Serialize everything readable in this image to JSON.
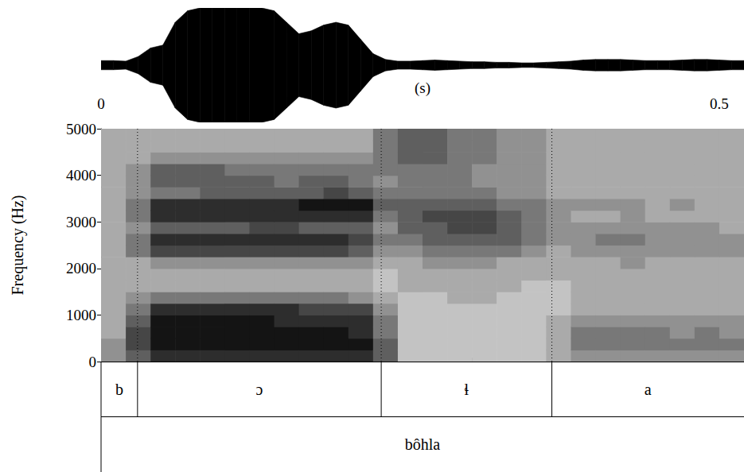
{
  "chart_data": [
    {
      "type": "waveform",
      "color": "#000000",
      "tick_labels": false,
      "xlim": [
        0,
        0.52
      ],
      "ylim": [
        -1,
        1
      ],
      "x": [
        0,
        0.01,
        0.02,
        0.03,
        0.04,
        0.05,
        0.06,
        0.07,
        0.08,
        0.09,
        0.1,
        0.11,
        0.12,
        0.13,
        0.14,
        0.15,
        0.16,
        0.17,
        0.18,
        0.19,
        0.2,
        0.21,
        0.22,
        0.23,
        0.24,
        0.25,
        0.26,
        0.27,
        0.28,
        0.29,
        0.3,
        0.31,
        0.32,
        0.33,
        0.34,
        0.35,
        0.36,
        0.37,
        0.38,
        0.39,
        0.4,
        0.41,
        0.42,
        0.43,
        0.44,
        0.45,
        0.46,
        0.47,
        0.48,
        0.49,
        0.5,
        0.51,
        0.52
      ],
      "values": [
        0.08,
        0.08,
        0.07,
        0.15,
        0.3,
        0.35,
        0.75,
        0.95,
        1.0,
        1.0,
        1.0,
        1.0,
        1.0,
        1.0,
        0.95,
        0.75,
        0.55,
        0.6,
        0.7,
        0.75,
        0.7,
        0.45,
        0.2,
        0.1,
        0.07,
        0.07,
        0.08,
        0.09,
        0.08,
        0.07,
        0.06,
        0.06,
        0.05,
        0.05,
        0.04,
        0.04,
        0.05,
        0.06,
        0.07,
        0.09,
        0.1,
        0.1,
        0.1,
        0.09,
        0.08,
        0.08,
        0.08,
        0.09,
        0.1,
        0.1,
        0.09,
        0.08,
        0.08
      ]
    },
    {
      "type": "spectrogram",
      "x_label": "(s)",
      "y_label": "Frequency (Hz)",
      "xlim": [
        0,
        0.52
      ],
      "xticks": [
        0,
        {
          "value": 0.1,
          "label": null
        },
        {
          "value": 0.2,
          "label": null
        },
        {
          "value": 0.3,
          "label": null
        },
        {
          "value": 0.4,
          "label": null
        },
        0.5
      ],
      "ylim": [
        0,
        5000
      ],
      "yticks": [
        0,
        1000,
        2000,
        3000,
        4000,
        5000
      ],
      "zlim": [
        0,
        9
      ],
      "time_bins": [
        0,
        0.02,
        0.04,
        0.06,
        0.08,
        0.1,
        0.12,
        0.14,
        0.16,
        0.18,
        0.2,
        0.22,
        0.24,
        0.26,
        0.28,
        0.3,
        0.32,
        0.34,
        0.36,
        0.38,
        0.4,
        0.42,
        0.44,
        0.46,
        0.48,
        0.5,
        0.52
      ],
      "freq_bins": [
        0,
        250,
        500,
        750,
        1000,
        1250,
        1500,
        1750,
        2000,
        2250,
        2500,
        2750,
        3000,
        3250,
        3500,
        3750,
        4000,
        4250,
        4500,
        4750,
        5000
      ],
      "intensity": [
        [
          4,
          4,
          3,
          3,
          3,
          3,
          3,
          3,
          3,
          3,
          3,
          3,
          3,
          3,
          3,
          3,
          3,
          3,
          3,
          3
        ],
        [
          6,
          7,
          7,
          6,
          5,
          4,
          3,
          3,
          3,
          5,
          5,
          4,
          5,
          5,
          4,
          4,
          4,
          3,
          3,
          3
        ],
        [
          8,
          9,
          9,
          9,
          8,
          5,
          3,
          3,
          4,
          7,
          8,
          6,
          8,
          8,
          5,
          6,
          6,
          4,
          3,
          3
        ],
        [
          8,
          9,
          9,
          9,
          8,
          5,
          3,
          3,
          4,
          7,
          8,
          6,
          8,
          8,
          5,
          6,
          6,
          4,
          3,
          3
        ],
        [
          8,
          9,
          9,
          9,
          8,
          5,
          3,
          3,
          4,
          7,
          8,
          6,
          8,
          8,
          6,
          6,
          6,
          4,
          3,
          3
        ],
        [
          8,
          9,
          9,
          9,
          8,
          5,
          3,
          3,
          4,
          7,
          8,
          6,
          8,
          8,
          6,
          6,
          5,
          4,
          3,
          3
        ],
        [
          8,
          9,
          9,
          9,
          8,
          5,
          3,
          3,
          4,
          7,
          8,
          7,
          8,
          8,
          6,
          6,
          5,
          4,
          3,
          3
        ],
        [
          8,
          9,
          9,
          8,
          8,
          5,
          3,
          3,
          4,
          7,
          8,
          7,
          8,
          8,
          6,
          5,
          5,
          4,
          3,
          3
        ],
        [
          8,
          9,
          9,
          8,
          7,
          5,
          3,
          3,
          4,
          7,
          8,
          6,
          8,
          9,
          6,
          6,
          5,
          4,
          3,
          3
        ],
        [
          8,
          9,
          9,
          8,
          7,
          5,
          3,
          3,
          4,
          7,
          8,
          6,
          8,
          9,
          7,
          6,
          5,
          4,
          3,
          3
        ],
        [
          8,
          9,
          8,
          8,
          7,
          4,
          3,
          3,
          4,
          6,
          7,
          6,
          8,
          9,
          6,
          5,
          5,
          4,
          3,
          3
        ],
        [
          6,
          6,
          5,
          5,
          4,
          3,
          2,
          2,
          3,
          4,
          5,
          4,
          5,
          6,
          5,
          4,
          5,
          5,
          5,
          5
        ],
        [
          2,
          2,
          2,
          2,
          2,
          2,
          3,
          3,
          3,
          4,
          5,
          6,
          6,
          6,
          5,
          5,
          5,
          6,
          6,
          6
        ],
        [
          2,
          2,
          2,
          2,
          2,
          2,
          3,
          3,
          4,
          5,
          6,
          6,
          7,
          6,
          5,
          5,
          5,
          6,
          6,
          6
        ],
        [
          2,
          2,
          2,
          2,
          2,
          3,
          3,
          3,
          4,
          5,
          6,
          7,
          7,
          6,
          5,
          5,
          5,
          5,
          5,
          5
        ],
        [
          2,
          2,
          2,
          2,
          2,
          3,
          3,
          3,
          4,
          5,
          6,
          7,
          7,
          6,
          5,
          4,
          4,
          5,
          5,
          5
        ],
        [
          2,
          2,
          2,
          2,
          2,
          2,
          3,
          3,
          3,
          5,
          6,
          6,
          6,
          5,
          4,
          4,
          4,
          4,
          4,
          4
        ],
        [
          2,
          2,
          2,
          2,
          2,
          2,
          2,
          3,
          3,
          4,
          5,
          5,
          5,
          5,
          4,
          4,
          4,
          4,
          4,
          4
        ],
        [
          3,
          3,
          3,
          3,
          2,
          2,
          2,
          3,
          3,
          3,
          4,
          4,
          4,
          4,
          3,
          3,
          3,
          3,
          3,
          3
        ],
        [
          4,
          5,
          5,
          4,
          3,
          3,
          3,
          3,
          3,
          4,
          4,
          4,
          3,
          4,
          3,
          3,
          3,
          3,
          3,
          3
        ],
        [
          4,
          5,
          5,
          4,
          3,
          3,
          3,
          3,
          3,
          4,
          5,
          4,
          3,
          4,
          3,
          3,
          3,
          3,
          3,
          3
        ],
        [
          4,
          5,
          5,
          4,
          3,
          3,
          3,
          3,
          4,
          4,
          5,
          4,
          4,
          4,
          3,
          3,
          3,
          3,
          3,
          3
        ],
        [
          4,
          5,
          5,
          4,
          3,
          3,
          3,
          3,
          3,
          4,
          4,
          4,
          3,
          3,
          3,
          3,
          3,
          3,
          3,
          3
        ],
        [
          4,
          5,
          4,
          4,
          3,
          3,
          3,
          3,
          3,
          4,
          4,
          4,
          3,
          4,
          3,
          3,
          3,
          3,
          3,
          3
        ],
        [
          4,
          5,
          5,
          4,
          3,
          3,
          3,
          3,
          3,
          4,
          4,
          4,
          3,
          3,
          3,
          3,
          3,
          3,
          3,
          3
        ],
        [
          4,
          5,
          4,
          4,
          3,
          3,
          3,
          3,
          3,
          4,
          4,
          3,
          3,
          3,
          3,
          3,
          3,
          3,
          3,
          3
        ]
      ]
    },
    {
      "type": "textgrid",
      "xlim": [
        0,
        0.52
      ],
      "tiers": [
        {
          "intervals": [
            {
              "start": 0,
              "end": 0.0295,
              "label": "b"
            },
            {
              "start": 0.0295,
              "end": 0.2266,
              "label": "ɔ"
            },
            {
              "start": 0.2266,
              "end": 0.3646,
              "label": "ɬ"
            },
            {
              "start": 0.3646,
              "end": 0.52,
              "label": "a"
            }
          ]
        },
        {
          "intervals": [
            {
              "start": 0,
              "end": 0.52,
              "label": "bôhla"
            }
          ]
        }
      ]
    }
  ]
}
